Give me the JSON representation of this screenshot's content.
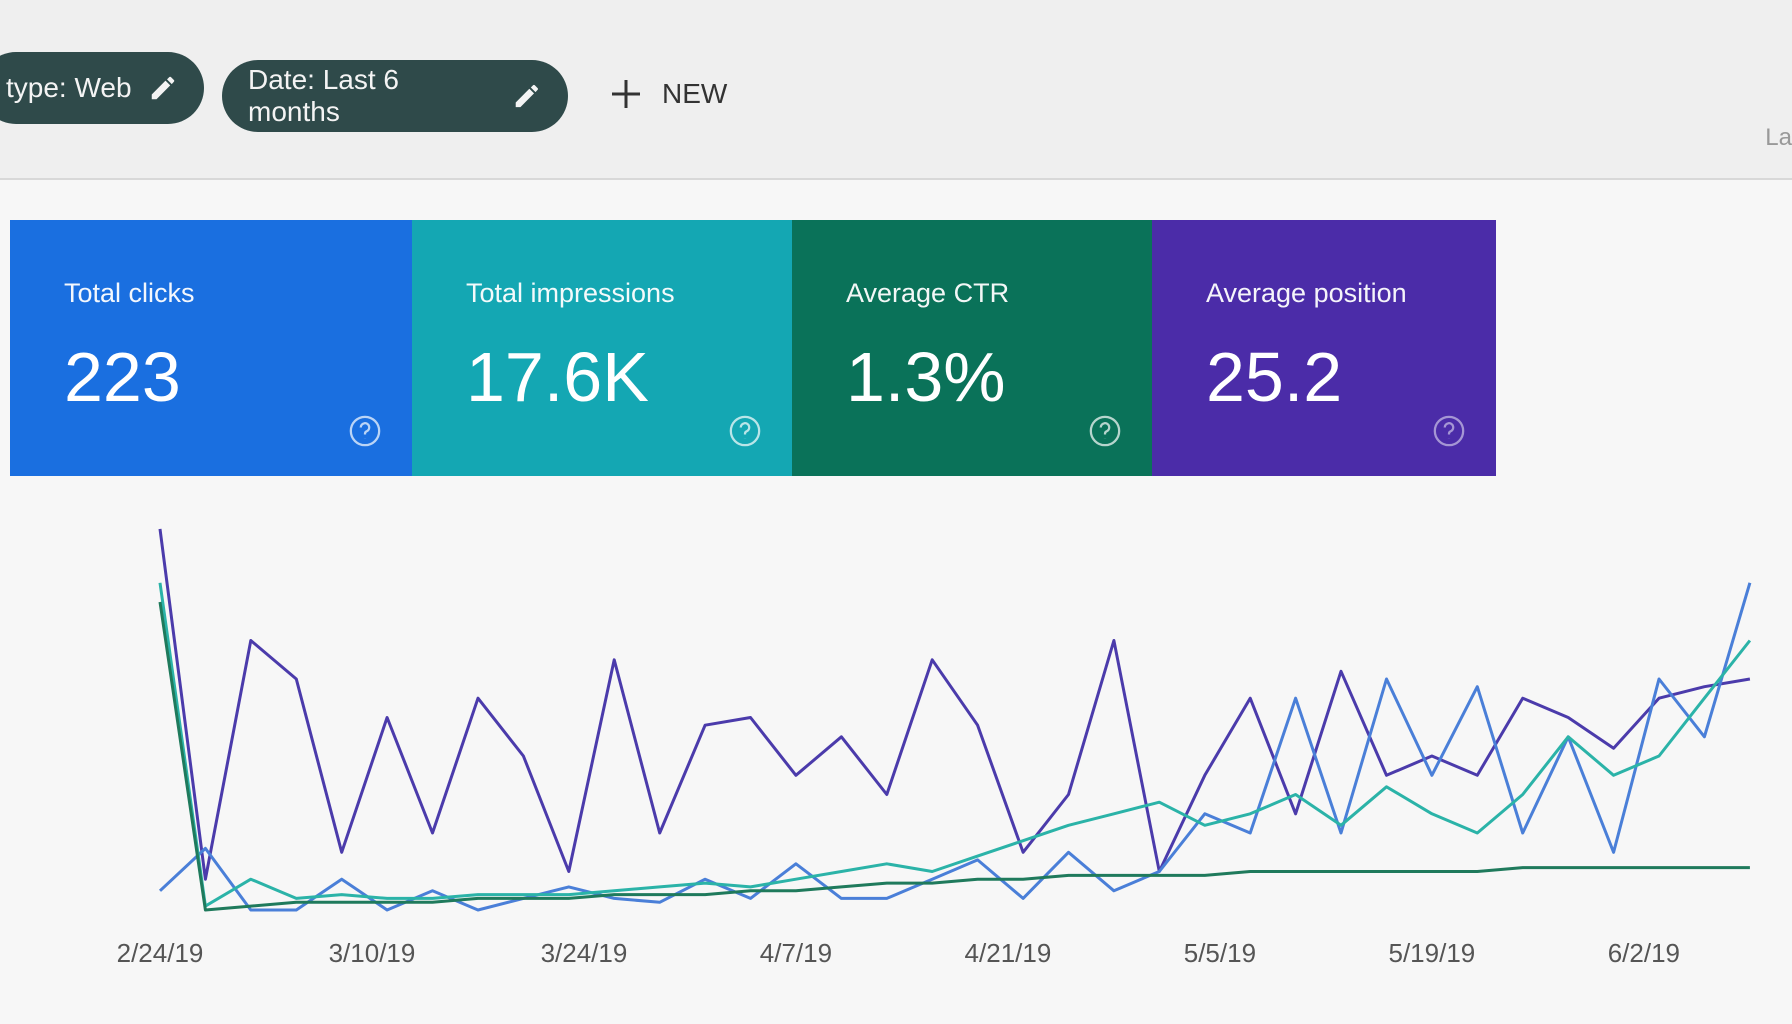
{
  "filters": [
    {
      "label": "type: Web"
    },
    {
      "label": "Date: Last 6 months"
    }
  ],
  "new_button": "NEW",
  "cutoff_text": "La",
  "metrics": [
    {
      "label": "Total clicks",
      "value": "223",
      "color": "#1a6fe0"
    },
    {
      "label": "Total impressions",
      "value": "17.6K",
      "color": "#14a7b3"
    },
    {
      "label": "Average CTR",
      "value": "1.3%",
      "color": "#0a7259"
    },
    {
      "label": "Average position",
      "value": "25.2",
      "color": "#4b2ca8"
    }
  ],
  "chart_data": {
    "type": "line",
    "x": [
      0,
      3,
      6,
      9,
      12,
      15,
      18,
      21,
      24,
      27,
      30,
      33,
      36,
      39,
      42,
      45,
      48,
      51,
      54,
      57,
      60,
      63,
      66,
      69,
      72,
      75,
      78,
      81,
      84,
      87,
      90,
      93,
      96,
      99,
      102,
      105
    ],
    "xlim": [
      0,
      106
    ],
    "xticks": [
      {
        "value": 0,
        "label": "2/24/19"
      },
      {
        "value": 14,
        "label": "3/10/19"
      },
      {
        "value": 28,
        "label": "3/24/19"
      },
      {
        "value": 42,
        "label": "4/7/19"
      },
      {
        "value": 56,
        "label": "4/21/19"
      },
      {
        "value": 70,
        "label": "5/5/19"
      },
      {
        "value": 84,
        "label": "5/19/19"
      },
      {
        "value": 98,
        "label": "6/2/19"
      }
    ],
    "ylim": [
      0,
      100
    ],
    "series": [
      {
        "color": "#4b3bab",
        "values": [
          99,
          8,
          70,
          60,
          15,
          50,
          20,
          55,
          40,
          10,
          65,
          20,
          48,
          50,
          35,
          45,
          30,
          65,
          48,
          15,
          30,
          70,
          10,
          35,
          55,
          25,
          62,
          35,
          40,
          35,
          55,
          50,
          42,
          55,
          58,
          60
        ]
      },
      {
        "color": "#4a7fd8",
        "values": [
          5,
          16,
          0,
          0,
          8,
          0,
          5,
          0,
          3,
          6,
          3,
          2,
          8,
          3,
          12,
          3,
          3,
          8,
          13,
          3,
          15,
          5,
          10,
          25,
          20,
          55,
          20,
          60,
          35,
          58,
          20,
          45,
          15,
          60,
          45,
          85
        ]
      },
      {
        "color": "#2bb3a8",
        "values": [
          85,
          1,
          8,
          3,
          4,
          3,
          3,
          4,
          4,
          4,
          5,
          6,
          7,
          6,
          8,
          10,
          12,
          10,
          14,
          18,
          22,
          25,
          28,
          22,
          25,
          30,
          22,
          32,
          25,
          20,
          30,
          45,
          35,
          40,
          55,
          70
        ]
      },
      {
        "color": "#1f7a5c",
        "values": [
          80,
          0,
          1,
          2,
          2,
          2,
          2,
          3,
          3,
          3,
          4,
          4,
          4,
          5,
          5,
          6,
          7,
          7,
          8,
          8,
          9,
          9,
          9,
          9,
          10,
          10,
          10,
          10,
          10,
          10,
          11,
          11,
          11,
          11,
          11,
          11
        ]
      }
    ]
  }
}
